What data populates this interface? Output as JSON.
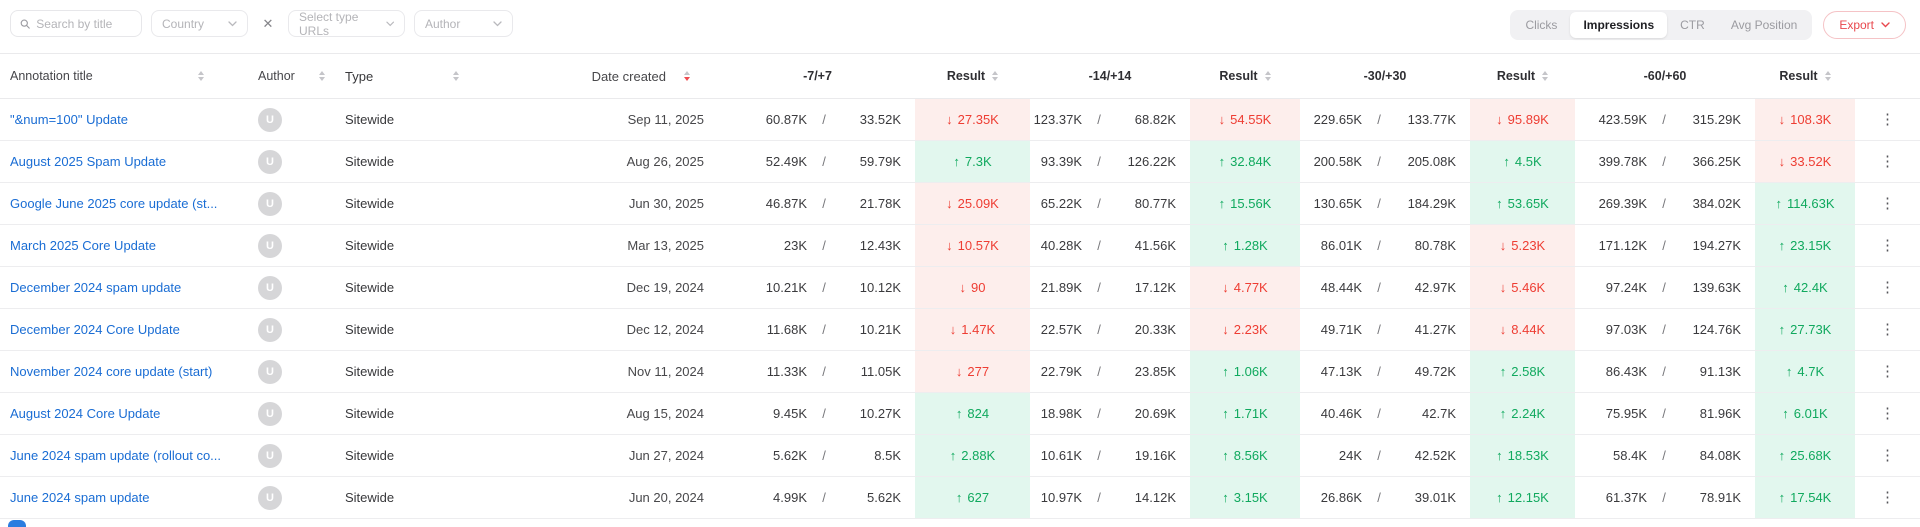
{
  "filter_bar": {
    "search_placeholder": "Search by title",
    "country_label": "Country",
    "type_urls_label": "Select type URLs",
    "author_label": "Author"
  },
  "metric_tabs": {
    "options": [
      "Clicks",
      "Impressions",
      "CTR",
      "Avg Position"
    ],
    "selected": "Impressions"
  },
  "export_button": {
    "label": "Export"
  },
  "icons": {
    "kebab": "⋮",
    "clear_x": "✕",
    "arrow_up": "↑",
    "arrow_down": "↓",
    "avatar_letter": "U"
  },
  "colors": {
    "link_blue": "#1a6dd4",
    "positive_green": "#10a95e",
    "positive_bg": "#e2f7ee",
    "negative_red": "#ee3d33",
    "negative_bg": "#fdeeec",
    "export_red": "#e8474d",
    "sort_active_red": "#ef4b50"
  },
  "table": {
    "slash": "/",
    "headers": {
      "title": "Annotation title",
      "author": "Author",
      "type": "Type",
      "date": "Date created",
      "w7": "-7/+7",
      "w14": "-14/+14",
      "w30": "-30/+30",
      "w60": "-60/+60",
      "result": "Result"
    },
    "rows": [
      {
        "title": "\"&num=100\" Update",
        "author_initial": "U",
        "type": "Sitewide",
        "date": "Sep 11, 2025",
        "windows": [
          {
            "before": "60.87K",
            "after": "33.52K",
            "change": "27.35K",
            "direction": "down"
          },
          {
            "before": "123.37K",
            "after": "68.82K",
            "change": "54.55K",
            "direction": "down"
          },
          {
            "before": "229.65K",
            "after": "133.77K",
            "change": "95.89K",
            "direction": "down"
          },
          {
            "before": "423.59K",
            "after": "315.29K",
            "change": "108.3K",
            "direction": "down"
          }
        ]
      },
      {
        "title": "August 2025 Spam Update",
        "author_initial": "U",
        "type": "Sitewide",
        "date": "Aug 26, 2025",
        "windows": [
          {
            "before": "52.49K",
            "after": "59.79K",
            "change": "7.3K",
            "direction": "up"
          },
          {
            "before": "93.39K",
            "after": "126.22K",
            "change": "32.84K",
            "direction": "up"
          },
          {
            "before": "200.58K",
            "after": "205.08K",
            "change": "4.5K",
            "direction": "up"
          },
          {
            "before": "399.78K",
            "after": "366.25K",
            "change": "33.52K",
            "direction": "down"
          }
        ]
      },
      {
        "title": "Google June 2025 core update (st...",
        "author_initial": "U",
        "type": "Sitewide",
        "date": "Jun 30, 2025",
        "windows": [
          {
            "before": "46.87K",
            "after": "21.78K",
            "change": "25.09K",
            "direction": "down"
          },
          {
            "before": "65.22K",
            "after": "80.77K",
            "change": "15.56K",
            "direction": "up"
          },
          {
            "before": "130.65K",
            "after": "184.29K",
            "change": "53.65K",
            "direction": "up"
          },
          {
            "before": "269.39K",
            "after": "384.02K",
            "change": "114.63K",
            "direction": "up"
          }
        ]
      },
      {
        "title": "March 2025 Core Update",
        "author_initial": "U",
        "type": "Sitewide",
        "date": "Mar 13, 2025",
        "windows": [
          {
            "before": "23K",
            "after": "12.43K",
            "change": "10.57K",
            "direction": "down"
          },
          {
            "before": "40.28K",
            "after": "41.56K",
            "change": "1.28K",
            "direction": "up"
          },
          {
            "before": "86.01K",
            "after": "80.78K",
            "change": "5.23K",
            "direction": "down"
          },
          {
            "before": "171.12K",
            "after": "194.27K",
            "change": "23.15K",
            "direction": "up"
          }
        ]
      },
      {
        "title": "December 2024 spam update",
        "author_initial": "U",
        "type": "Sitewide",
        "date": "Dec 19, 2024",
        "windows": [
          {
            "before": "10.21K",
            "after": "10.12K",
            "change": "90",
            "direction": "down"
          },
          {
            "before": "21.89K",
            "after": "17.12K",
            "change": "4.77K",
            "direction": "down"
          },
          {
            "before": "48.44K",
            "after": "42.97K",
            "change": "5.46K",
            "direction": "down"
          },
          {
            "before": "97.24K",
            "after": "139.63K",
            "change": "42.4K",
            "direction": "up"
          }
        ]
      },
      {
        "title": "December 2024 Core Update",
        "author_initial": "U",
        "type": "Sitewide",
        "date": "Dec 12, 2024",
        "windows": [
          {
            "before": "11.68K",
            "after": "10.21K",
            "change": "1.47K",
            "direction": "down"
          },
          {
            "before": "22.57K",
            "after": "20.33K",
            "change": "2.23K",
            "direction": "down"
          },
          {
            "before": "49.71K",
            "after": "41.27K",
            "change": "8.44K",
            "direction": "down"
          },
          {
            "before": "97.03K",
            "after": "124.76K",
            "change": "27.73K",
            "direction": "up"
          }
        ]
      },
      {
        "title": "November 2024 core update (start)",
        "author_initial": "U",
        "type": "Sitewide",
        "date": "Nov 11, 2024",
        "windows": [
          {
            "before": "11.33K",
            "after": "11.05K",
            "change": "277",
            "direction": "down"
          },
          {
            "before": "22.79K",
            "after": "23.85K",
            "change": "1.06K",
            "direction": "up"
          },
          {
            "before": "47.13K",
            "after": "49.72K",
            "change": "2.58K",
            "direction": "up"
          },
          {
            "before": "86.43K",
            "after": "91.13K",
            "change": "4.7K",
            "direction": "up"
          }
        ]
      },
      {
        "title": "August 2024 Core Update",
        "author_initial": "U",
        "type": "Sitewide",
        "date": "Aug 15, 2024",
        "windows": [
          {
            "before": "9.45K",
            "after": "10.27K",
            "change": "824",
            "direction": "up"
          },
          {
            "before": "18.98K",
            "after": "20.69K",
            "change": "1.71K",
            "direction": "up"
          },
          {
            "before": "40.46K",
            "after": "42.7K",
            "change": "2.24K",
            "direction": "up"
          },
          {
            "before": "75.95K",
            "after": "81.96K",
            "change": "6.01K",
            "direction": "up"
          }
        ]
      },
      {
        "title": "June 2024 spam update (rollout co...",
        "author_initial": "U",
        "type": "Sitewide",
        "date": "Jun 27, 2024",
        "windows": [
          {
            "before": "5.62K",
            "after": "8.5K",
            "change": "2.88K",
            "direction": "up"
          },
          {
            "before": "10.61K",
            "after": "19.16K",
            "change": "8.56K",
            "direction": "up"
          },
          {
            "before": "24K",
            "after": "42.52K",
            "change": "18.53K",
            "direction": "up"
          },
          {
            "before": "58.4K",
            "after": "84.08K",
            "change": "25.68K",
            "direction": "up"
          }
        ]
      },
      {
        "title": "June 2024 spam update",
        "author_initial": "U",
        "type": "Sitewide",
        "date": "Jun 20, 2024",
        "windows": [
          {
            "before": "4.99K",
            "after": "5.62K",
            "change": "627",
            "direction": "up"
          },
          {
            "before": "10.97K",
            "after": "14.12K",
            "change": "3.15K",
            "direction": "up"
          },
          {
            "before": "26.86K",
            "after": "39.01K",
            "change": "12.15K",
            "direction": "up"
          },
          {
            "before": "61.37K",
            "after": "78.91K",
            "change": "17.54K",
            "direction": "up"
          }
        ]
      }
    ]
  }
}
